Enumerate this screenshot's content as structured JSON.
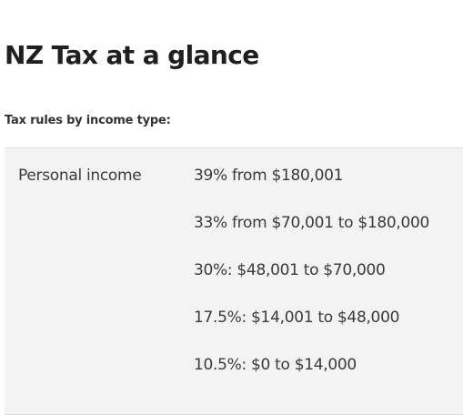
{
  "page": {
    "title": "NZ Tax at a glance",
    "section_label": "Tax rules by income type:"
  },
  "tax_table": {
    "rows": [
      {
        "label": "Personal income",
        "rates": [
          "39% from $180,001",
          "33% from $70,001 to $180,000",
          "30%: $48,001 to $70,000",
          "17.5%: $14,001 to $48,000",
          "10.5%: $0 to $14,000"
        ]
      }
    ]
  }
}
